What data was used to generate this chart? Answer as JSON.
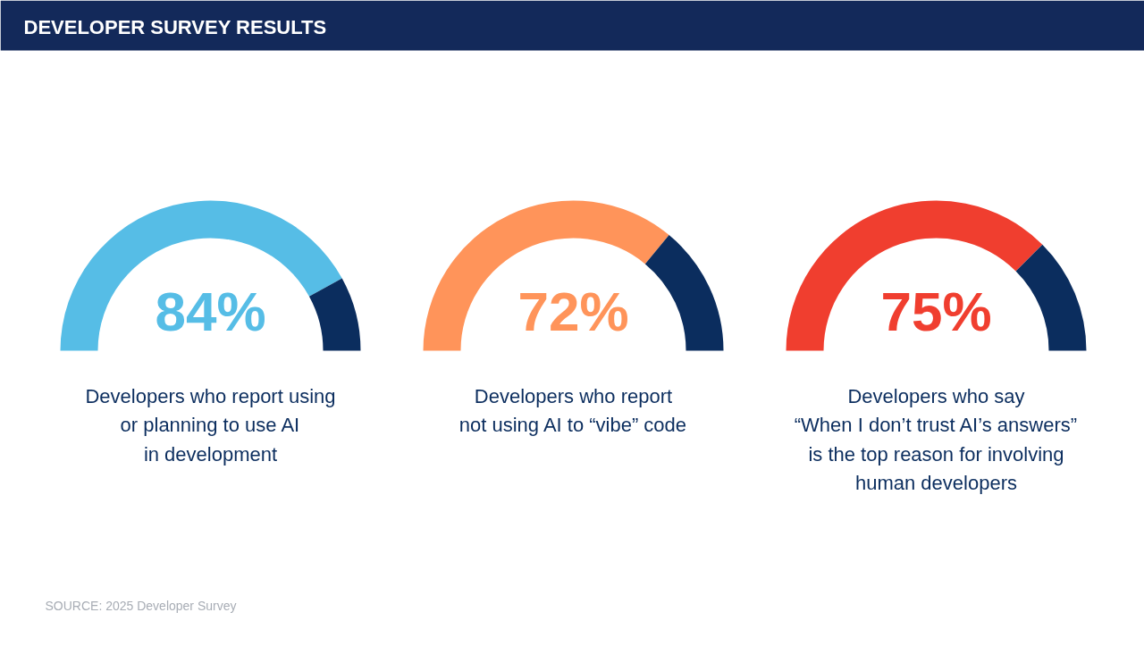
{
  "chart_data": [
    {
      "type": "donut",
      "title": "DEVELOPER SURVEY RESULTS",
      "categories": [
        null,
        null
      ],
      "values": [
        84,
        16
      ],
      "colors": [
        "#56bde6",
        "#0b2d5e"
      ],
      "value_labels": [
        "84%",
        null
      ],
      "annotations": [
        "Developers who report using\nor planning to use AI\nin development"
      ]
    },
    {
      "type": "donut",
      "categories": [
        null,
        null
      ],
      "values": [
        72,
        28
      ],
      "colors": [
        "#ff945a",
        "#0b2d5e"
      ],
      "value_labels": [
        "72%",
        null
      ],
      "annotations": [
        "Developers who report\nnot using AI to “vibe” code"
      ]
    },
    {
      "type": "donut",
      "categories": [
        null,
        null
      ],
      "values": [
        75,
        25
      ],
      "colors": [
        "#f03e2f",
        "#0b2d5e"
      ],
      "value_labels": [
        "75%",
        null
      ],
      "annotations": [
        "Developers who say\n“When I don’t trust AI’s answers”\nis the top reason for involving\nhuman developers",
        "SOURCE: 2025 Developer Survey"
      ]
    }
  ]
}
